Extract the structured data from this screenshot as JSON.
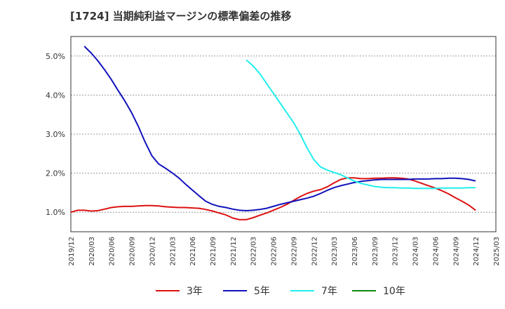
{
  "chart_data": {
    "type": "line",
    "title": "[1724]  当期純利益マージンの標準偏差の推移",
    "y_ticks": [
      "1.0%",
      "2.0%",
      "3.0%",
      "4.0%",
      "5.0%"
    ],
    "y_tick_values": [
      1.0,
      2.0,
      3.0,
      4.0,
      5.0
    ],
    "ylim": [
      0.5,
      5.5
    ],
    "x_ticks": [
      "2019/12",
      "2020/03",
      "2020/06",
      "2020/09",
      "2020/12",
      "2021/03",
      "2021/06",
      "2021/09",
      "2021/12",
      "2022/03",
      "2022/06",
      "2022/09",
      "2022/12",
      "2023/03",
      "2023/06",
      "2023/09",
      "2023/12",
      "2024/03",
      "2024/06",
      "2024/09",
      "2024/12",
      "2025/03"
    ],
    "grid": "horizontal dashed",
    "legend_position": "bottom",
    "series": [
      {
        "name": "3年",
        "color": "#dd1111",
        "x": [
          "2019/12",
          "2020/01",
          "2020/02",
          "2020/03",
          "2020/04",
          "2020/05",
          "2020/06",
          "2020/07",
          "2020/08",
          "2020/09",
          "2020/10",
          "2020/11",
          "2020/12",
          "2021/01",
          "2021/02",
          "2021/03",
          "2021/04",
          "2021/05",
          "2021/06",
          "2021/07",
          "2021/08",
          "2021/09",
          "2021/10",
          "2021/11",
          "2021/12",
          "2022/01",
          "2022/02",
          "2022/03",
          "2022/04",
          "2022/05",
          "2022/06",
          "2022/07",
          "2022/08",
          "2022/09",
          "2022/10",
          "2022/11",
          "2022/12",
          "2023/01",
          "2023/02",
          "2023/03",
          "2023/04",
          "2023/05",
          "2023/06",
          "2023/07",
          "2023/08",
          "2023/09",
          "2023/10",
          "2023/11",
          "2023/12",
          "2024/01",
          "2024/02",
          "2024/03",
          "2024/04",
          "2024/05",
          "2024/06",
          "2024/07",
          "2024/08",
          "2024/09",
          "2024/10",
          "2024/11",
          "2024/12"
        ],
        "values": [
          1.0,
          1.05,
          1.05,
          1.03,
          1.04,
          1.08,
          1.12,
          1.14,
          1.15,
          1.15,
          1.16,
          1.17,
          1.17,
          1.16,
          1.14,
          1.13,
          1.12,
          1.12,
          1.11,
          1.1,
          1.07,
          1.03,
          0.98,
          0.93,
          0.85,
          0.81,
          0.81,
          0.86,
          0.92,
          0.98,
          1.05,
          1.12,
          1.2,
          1.3,
          1.4,
          1.48,
          1.54,
          1.58,
          1.65,
          1.75,
          1.84,
          1.88,
          1.88,
          1.86,
          1.86,
          1.87,
          1.87,
          1.88,
          1.88,
          1.87,
          1.85,
          1.8,
          1.74,
          1.68,
          1.62,
          1.55,
          1.47,
          1.37,
          1.28,
          1.18,
          1.05
        ]
      },
      {
        "name": "5年",
        "color": "#1111bb",
        "x": [
          "2020/02",
          "2020/03",
          "2020/04",
          "2020/05",
          "2020/06",
          "2020/07",
          "2020/08",
          "2020/09",
          "2020/10",
          "2020/11",
          "2020/12",
          "2021/01",
          "2021/02",
          "2021/03",
          "2021/04",
          "2021/05",
          "2021/06",
          "2021/07",
          "2021/08",
          "2021/09",
          "2021/10",
          "2021/11",
          "2021/12",
          "2022/01",
          "2022/02",
          "2022/03",
          "2022/04",
          "2022/05",
          "2022/06",
          "2022/07",
          "2022/08",
          "2022/09",
          "2022/10",
          "2022/11",
          "2022/12",
          "2023/01",
          "2023/02",
          "2023/03",
          "2023/04",
          "2023/05",
          "2023/06",
          "2023/07",
          "2023/08",
          "2023/09",
          "2023/10",
          "2023/11",
          "2023/12",
          "2024/01",
          "2024/02",
          "2024/03",
          "2024/04",
          "2024/05",
          "2024/06",
          "2024/07",
          "2024/08",
          "2024/09",
          "2024/10",
          "2024/11",
          "2024/12"
        ],
        "values": [
          5.25,
          5.08,
          4.88,
          4.65,
          4.4,
          4.12,
          3.85,
          3.55,
          3.2,
          2.8,
          2.45,
          2.24,
          2.13,
          2.01,
          1.88,
          1.72,
          1.57,
          1.42,
          1.28,
          1.2,
          1.15,
          1.12,
          1.08,
          1.05,
          1.04,
          1.05,
          1.07,
          1.1,
          1.15,
          1.2,
          1.24,
          1.28,
          1.32,
          1.36,
          1.41,
          1.48,
          1.56,
          1.63,
          1.68,
          1.72,
          1.76,
          1.79,
          1.81,
          1.83,
          1.84,
          1.84,
          1.84,
          1.84,
          1.84,
          1.85,
          1.85,
          1.85,
          1.86,
          1.86,
          1.87,
          1.87,
          1.86,
          1.84,
          1.8
        ]
      },
      {
        "name": "7年",
        "color": "#22eeee",
        "x": [
          "2022/02",
          "2022/03",
          "2022/04",
          "2022/05",
          "2022/06",
          "2022/07",
          "2022/08",
          "2022/09",
          "2022/10",
          "2022/11",
          "2022/12",
          "2023/01",
          "2023/02",
          "2023/03",
          "2023/04",
          "2023/05",
          "2023/06",
          "2023/07",
          "2023/08",
          "2023/09",
          "2023/10",
          "2023/11",
          "2023/12",
          "2024/01",
          "2024/02",
          "2024/03",
          "2024/04",
          "2024/05",
          "2024/06",
          "2024/07",
          "2024/08",
          "2024/09",
          "2024/10",
          "2024/11",
          "2024/12"
        ],
        "values": [
          4.9,
          4.75,
          4.55,
          4.3,
          4.05,
          3.8,
          3.55,
          3.3,
          3.0,
          2.65,
          2.35,
          2.16,
          2.08,
          2.02,
          1.96,
          1.88,
          1.8,
          1.74,
          1.7,
          1.66,
          1.64,
          1.63,
          1.63,
          1.62,
          1.62,
          1.61,
          1.61,
          1.61,
          1.61,
          1.62,
          1.62,
          1.62,
          1.62,
          1.63,
          1.63
        ]
      },
      {
        "name": "10年",
        "color": "#118811",
        "x": [],
        "values": []
      }
    ]
  }
}
